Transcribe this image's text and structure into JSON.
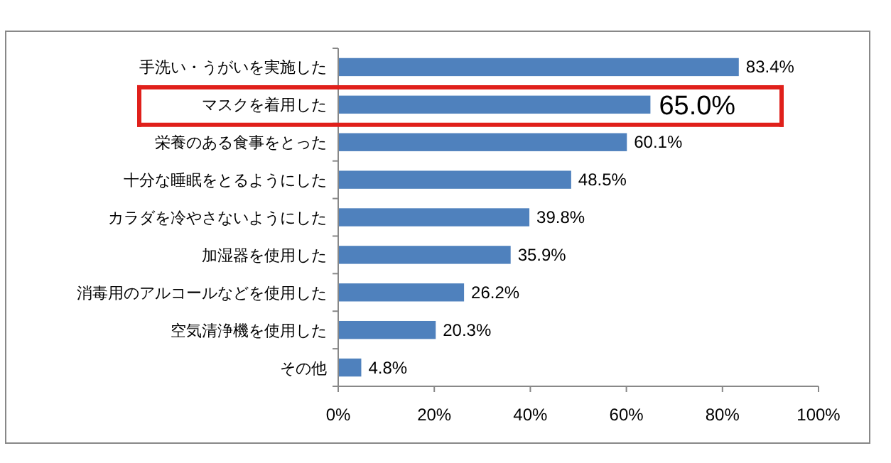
{
  "chart_data": {
    "type": "bar",
    "orientation": "horizontal",
    "categories": [
      "手洗い・うがいを実施した",
      "マスクを着用した",
      "栄養のある食事をとった",
      "十分な睡眠をとるようにした",
      "カラダを冷やさないようにした",
      "加湿器を使用した",
      "消毒用のアルコールなどを使用した",
      "空気清浄機を使用した",
      "その他"
    ],
    "values": [
      83.4,
      65.0,
      60.1,
      48.5,
      39.8,
      35.9,
      26.2,
      20.3,
      4.8
    ],
    "color": "#4f81bd",
    "value_labels": [
      "83.4%",
      null,
      "60.1%",
      "48.5%",
      "39.8%",
      "35.9%",
      "26.2%",
      "20.3%",
      "4.8%"
    ],
    "annotations": [
      {
        "text": "65.0%",
        "x": 65.0,
        "y": "マスクを着用した"
      }
    ],
    "xlim": [
      0,
      100
    ],
    "xticks": [
      {
        "value": 0,
        "label": "0%"
      },
      {
        "value": 20,
        "label": "20%"
      },
      {
        "value": 40,
        "label": "40%"
      },
      {
        "value": 60,
        "label": "60%"
      },
      {
        "value": 80,
        "label": "80%"
      },
      {
        "value": 100,
        "label": "100%"
      }
    ],
    "grid": false
  }
}
